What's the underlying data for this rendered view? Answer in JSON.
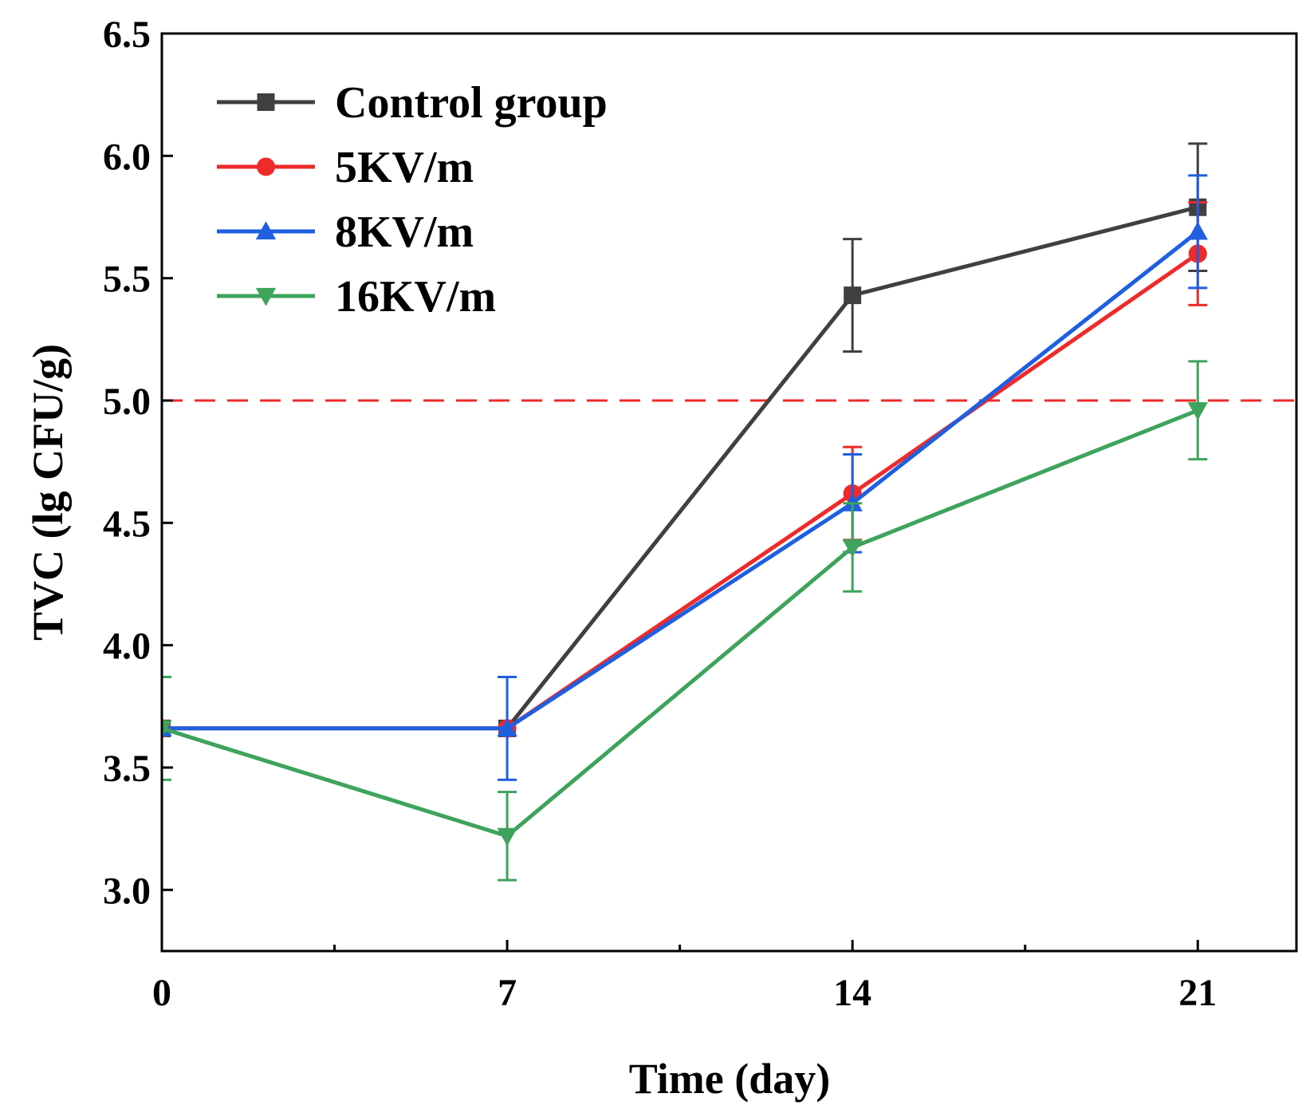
{
  "chart_data": {
    "type": "line",
    "xlabel": "Time (day)",
    "ylabel": "TVC (lg CFU/g)",
    "xlim": [
      0,
      23
    ],
    "ylim": [
      2.75,
      6.5
    ],
    "x_ticks": [
      0,
      7,
      14,
      21
    ],
    "x_tick_labels": [
      "0",
      "7",
      "14",
      "21"
    ],
    "x_minor_ticks": [
      3.5,
      10.5,
      17.5
    ],
    "y_ticks": [
      3.0,
      3.5,
      4.0,
      4.5,
      5.0,
      5.5,
      6.0,
      6.5
    ],
    "y_tick_labels": [
      "3.0",
      "3.5",
      "4.0",
      "4.5",
      "5.0",
      "5.5",
      "6.0",
      "6.5"
    ],
    "x": [
      0,
      7,
      14,
      21
    ],
    "series": [
      {
        "name": "Control group",
        "color": "#404040",
        "marker": "square",
        "values": [
          3.66,
          3.66,
          5.43,
          5.79
        ],
        "errors": [
          0.0,
          0.0,
          0.23,
          0.26
        ]
      },
      {
        "name": "5KV/m",
        "color": "#ee2a2a",
        "marker": "circle",
        "values": [
          3.66,
          3.66,
          4.62,
          5.6
        ],
        "errors": [
          0.0,
          0.0,
          0.19,
          0.21
        ]
      },
      {
        "name": "8KV/m",
        "color": "#1f5fe0",
        "marker": "triangle-up",
        "values": [
          3.66,
          3.66,
          4.58,
          5.69
        ],
        "errors": [
          0.0,
          0.21,
          0.2,
          0.23
        ]
      },
      {
        "name": "16KV/m",
        "color": "#3ea35c",
        "marker": "triangle-down",
        "values": [
          3.66,
          3.22,
          4.4,
          4.96
        ],
        "errors": [
          0.21,
          0.18,
          0.18,
          0.2
        ]
      }
    ],
    "reference_line": {
      "y": 5.0,
      "color": "#ee2a2a",
      "style": "dashed"
    },
    "legend_position": "top-left",
    "grid": false
  }
}
